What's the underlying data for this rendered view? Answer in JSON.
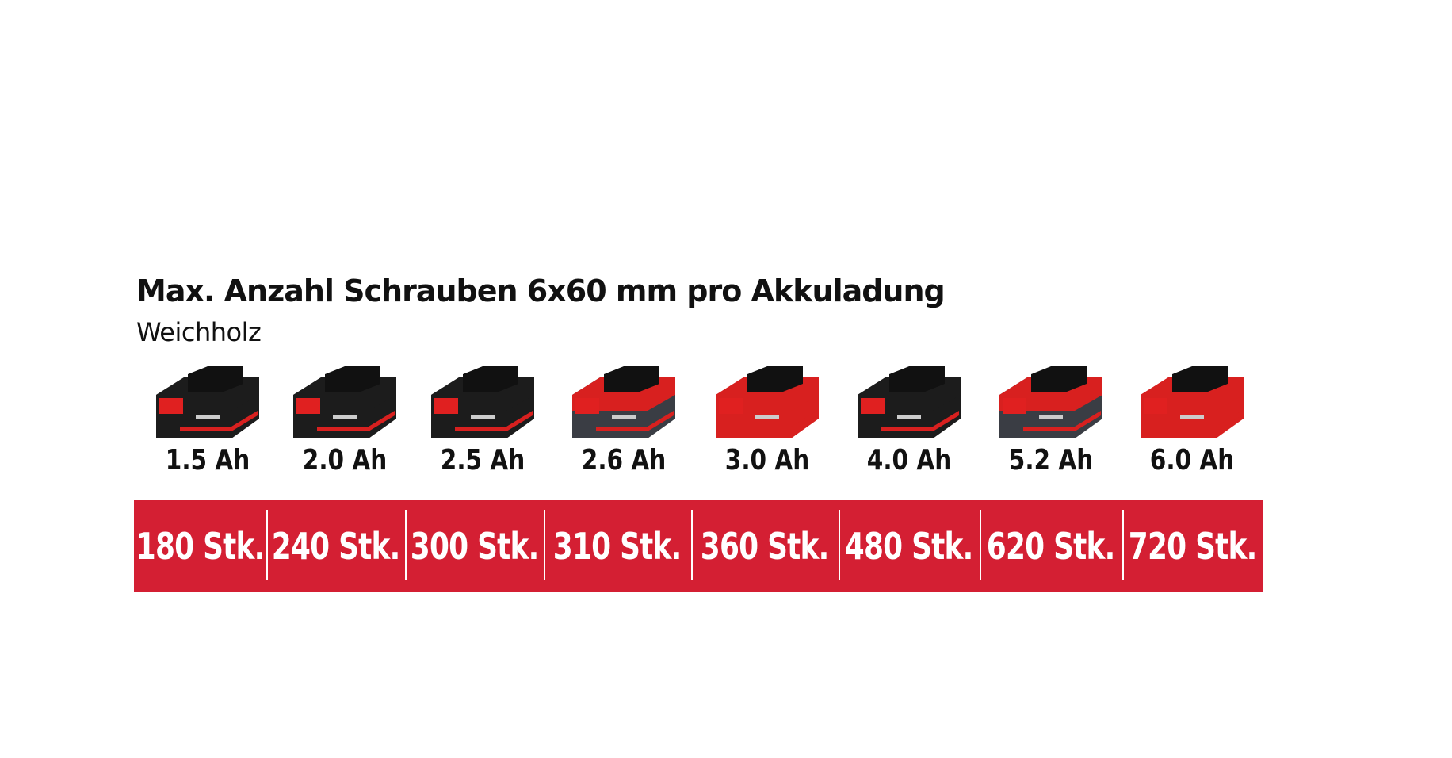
{
  "title": "Max. Anzahl Schrauben 6x60 mm pro Akkuladung",
  "subtitle": "Weichholz",
  "colors": {
    "accent": "#d41f33",
    "text": "#111111",
    "battery_black": "#1c1c1c",
    "battery_red": "#d8201f"
  },
  "batteries": [
    {
      "capacity": "1.5 Ah",
      "count": "180 Stk.",
      "body": "black"
    },
    {
      "capacity": "2.0 Ah",
      "count": "240 Stk.",
      "body": "black"
    },
    {
      "capacity": "2.5 Ah",
      "count": "300 Stk.",
      "body": "black"
    },
    {
      "capacity": "2.6 Ah",
      "count": "310 Stk.",
      "body": "grey-red"
    },
    {
      "capacity": "3.0 Ah",
      "count": "360 Stk.",
      "body": "red"
    },
    {
      "capacity": "4.0 Ah",
      "count": "480 Stk.",
      "body": "black"
    },
    {
      "capacity": "5.2 Ah",
      "count": "620 Stk.",
      "body": "grey-red"
    },
    {
      "capacity": "6.0 Ah",
      "count": "720 Stk.",
      "body": "red"
    }
  ]
}
